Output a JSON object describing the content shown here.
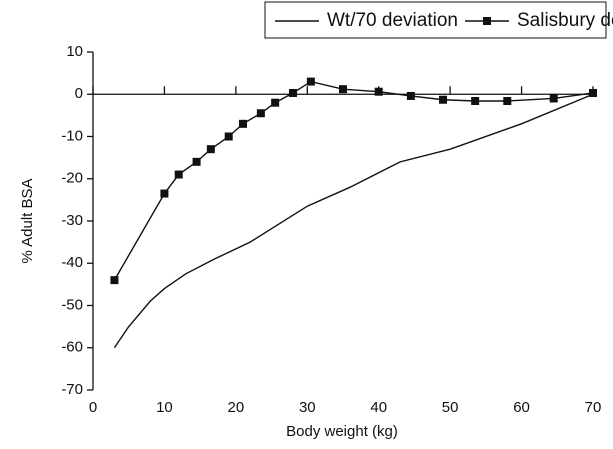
{
  "chart_data": {
    "type": "line",
    "x_label": "Body weight (kg)",
    "y_label": "% Adult BSA",
    "xlim": [
      0,
      70
    ],
    "xticks": [
      0,
      10,
      20,
      30,
      40,
      50,
      60,
      70
    ],
    "ylim": [
      -70,
      10
    ],
    "yticks": [
      10,
      0,
      -10,
      -20,
      -30,
      -40,
      -50,
      -60,
      -70
    ],
    "legend": "top",
    "series": [
      {
        "name": "Wt/70 deviation",
        "color": "#111111",
        "marker": false,
        "x": [
          3,
          5,
          8,
          10,
          13,
          17,
          22,
          30,
          36,
          43,
          50,
          60,
          70
        ],
        "values": [
          -60,
          -55,
          -49,
          -46,
          -42.5,
          -39,
          -35,
          -26.5,
          -22,
          -16,
          -13,
          -7,
          0
        ]
      },
      {
        "name": "Salisbury deviation",
        "color": "#111111",
        "marker": true,
        "x": [
          3,
          10,
          12,
          14.5,
          16.5,
          19,
          21,
          23.5,
          25.5,
          28,
          30.5,
          35,
          40,
          44.5,
          49,
          53.5,
          58,
          64.5,
          70
        ],
        "values": [
          -44,
          -23.5,
          -19,
          -16,
          -13,
          -10,
          -7,
          -4.5,
          -2,
          0.3,
          3,
          1.2,
          0.6,
          -0.4,
          -1.3,
          -1.6,
          -1.6,
          -1,
          0.3
        ]
      }
    ]
  }
}
